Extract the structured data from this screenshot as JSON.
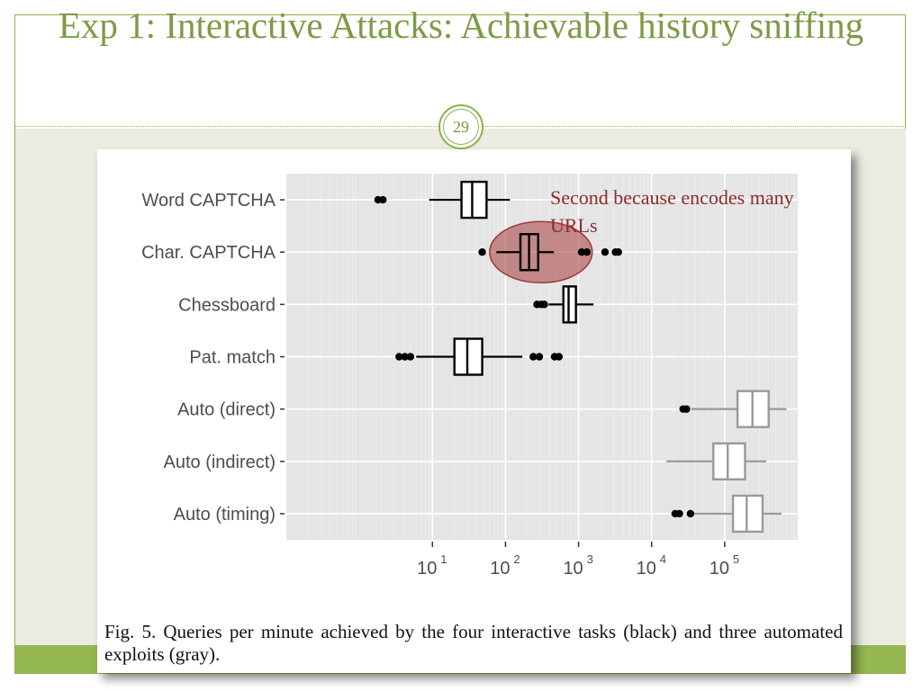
{
  "slide": {
    "title": "Exp 1: Interactive Attacks: Achievable history sniffing",
    "page_number": "29",
    "colors": {
      "accent": "#8ab449",
      "title": "#7c9b45",
      "annotation": "#8e2a2a"
    }
  },
  "annotation": {
    "text": "Second because encodes many URLs"
  },
  "caption": {
    "text": "Fig. 5.   Queries per minute achieved by the four interactive tasks (black) and three automated exploits (gray)."
  },
  "chart_data": {
    "type": "boxplot",
    "orientation": "horizontal",
    "x_scale": "log10",
    "xlim": [
      0.1,
      1000000
    ],
    "x_ticks": [
      {
        "value": 10,
        "label": "10",
        "exp": "1"
      },
      {
        "value": 100,
        "label": "10",
        "exp": "2"
      },
      {
        "value": 1000,
        "label": "10",
        "exp": "3"
      },
      {
        "value": 10000,
        "label": "10",
        "exp": "4"
      },
      {
        "value": 100000,
        "label": "10",
        "exp": "5"
      }
    ],
    "grid": true,
    "highlight_category": "Char. CAPTCHA",
    "series": [
      {
        "name": "Word CAPTCHA",
        "group": "interactive",
        "color": "#000000",
        "whisker_low": 9,
        "q1": 25,
        "median": 35,
        "q3": 55,
        "whisker_high": 115,
        "outliers": [
          1.8,
          2.1
        ]
      },
      {
        "name": "Char. CAPTCHA",
        "group": "interactive",
        "color": "#000000",
        "whisker_low": 75,
        "q1": 160,
        "median": 210,
        "q3": 280,
        "whisker_high": 460,
        "outliers": [
          48,
          1100,
          1300,
          2300,
          3200,
          3500
        ]
      },
      {
        "name": "Chessboard",
        "group": "interactive",
        "color": "#000000",
        "whisker_low": 390,
        "q1": 620,
        "median": 730,
        "q3": 920,
        "whisker_high": 1600,
        "outliers": [
          270,
          310,
          340
        ]
      },
      {
        "name": "Pat. match",
        "group": "interactive",
        "color": "#000000",
        "whisker_low": 6,
        "q1": 20,
        "median": 30,
        "q3": 48,
        "whisker_high": 170,
        "outliers": [
          3.5,
          4.2,
          5.0,
          240,
          290,
          470,
          540
        ]
      },
      {
        "name": "Auto (direct)",
        "group": "automated",
        "color": "#999999",
        "whisker_low": 35000,
        "q1": 150000,
        "median": 240000,
        "q3": 400000,
        "whisker_high": 700000,
        "outliers": [
          27000,
          30000
        ]
      },
      {
        "name": "Auto (indirect)",
        "group": "automated",
        "color": "#999999",
        "whisker_low": 16000,
        "q1": 70000,
        "median": 110000,
        "q3": 190000,
        "whisker_high": 370000,
        "outliers": []
      },
      {
        "name": "Auto (timing)",
        "group": "automated",
        "color": "#999999",
        "whisker_low": 37000,
        "q1": 130000,
        "median": 200000,
        "q3": 330000,
        "whisker_high": 600000,
        "outliers": [
          21000,
          24000,
          34000
        ]
      }
    ]
  }
}
